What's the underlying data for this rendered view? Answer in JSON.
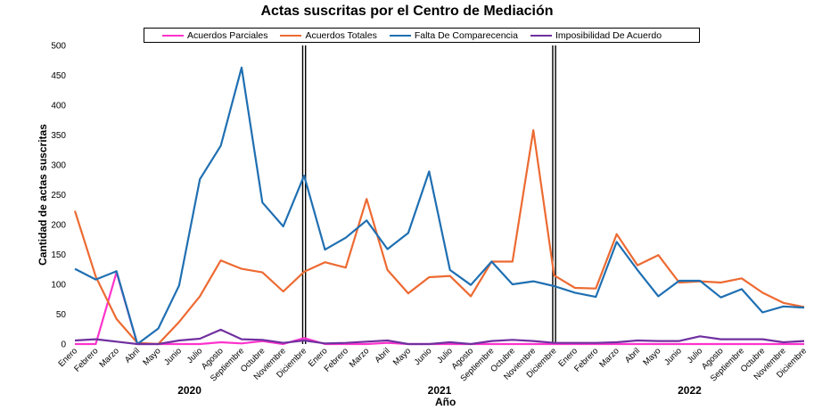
{
  "chart_data": {
    "type": "line",
    "title": "Actas suscritas por el Centro de Mediación",
    "xlabel": "Año",
    "ylabel": "Cantidad de actas suscritas",
    "ylim": [
      0,
      500
    ],
    "yticks": [
      0,
      50,
      100,
      150,
      200,
      250,
      300,
      350,
      400,
      450,
      500
    ],
    "grid": false,
    "legend_position": "top",
    "years": [
      "2020",
      "2021",
      "2022"
    ],
    "x": [
      "Enero",
      "Febrero",
      "Marzo",
      "Abril",
      "Mayo",
      "Junio",
      "Julio",
      "Agosto",
      "Septiembre",
      "Octubre",
      "Noviembre",
      "Diciembre",
      "Enero",
      "Febrero",
      "Marzo",
      "Abril",
      "Mayo",
      "Junio",
      "Julio",
      "Agosto",
      "Septiembre",
      "Octubre",
      "Noviembre",
      "Diciembre",
      "Enero",
      "Febrero",
      "Marzo",
      "Abril",
      "Mayo",
      "Junio",
      "Julio",
      "Agosto",
      "Septiembre",
      "Octubre",
      "Noviembre",
      "Diciembre"
    ],
    "year_separators_after_index": [
      11,
      23
    ],
    "series": [
      {
        "name": "Acuerdos Parciales",
        "color": "#ff33cc",
        "values": [
          0,
          0,
          120,
          0,
          0,
          0,
          0,
          3,
          1,
          5,
          0,
          10,
          0,
          0,
          0,
          2,
          0,
          0,
          0,
          0,
          0,
          0,
          0,
          0,
          0,
          0,
          0,
          0,
          0,
          0,
          0,
          0,
          0,
          0,
          0,
          0
        ]
      },
      {
        "name": "Acuerdos Totales",
        "color": "#ed6a32",
        "values": [
          223,
          113,
          42,
          2,
          0,
          37,
          80,
          140,
          126,
          120,
          88,
          121,
          137,
          128,
          243,
          124,
          85,
          112,
          114,
          80,
          138,
          138,
          358,
          115,
          94,
          93,
          184,
          132,
          149,
          103,
          105,
          103,
          110,
          86,
          69,
          62
        ]
      },
      {
        "name": "Falta De Comparecencia",
        "color": "#1f6fb2",
        "values": [
          126,
          108,
          122,
          0,
          26,
          98,
          276,
          332,
          463,
          237,
          197,
          282,
          158,
          178,
          207,
          159,
          186,
          289,
          124,
          99,
          138,
          100,
          105,
          97,
          86,
          79,
          171,
          124,
          80,
          106,
          106,
          78,
          92,
          53,
          63,
          61
        ]
      },
      {
        "name": "Imposibilidad De Acuerdo",
        "color": "#7030a0",
        "values": [
          6,
          8,
          4,
          0,
          0,
          6,
          9,
          24,
          8,
          7,
          2,
          6,
          1,
          2,
          4,
          6,
          0,
          0,
          3,
          0,
          5,
          7,
          5,
          2,
          2,
          2,
          3,
          6,
          5,
          5,
          13,
          8,
          8,
          8,
          3,
          5
        ]
      }
    ]
  }
}
